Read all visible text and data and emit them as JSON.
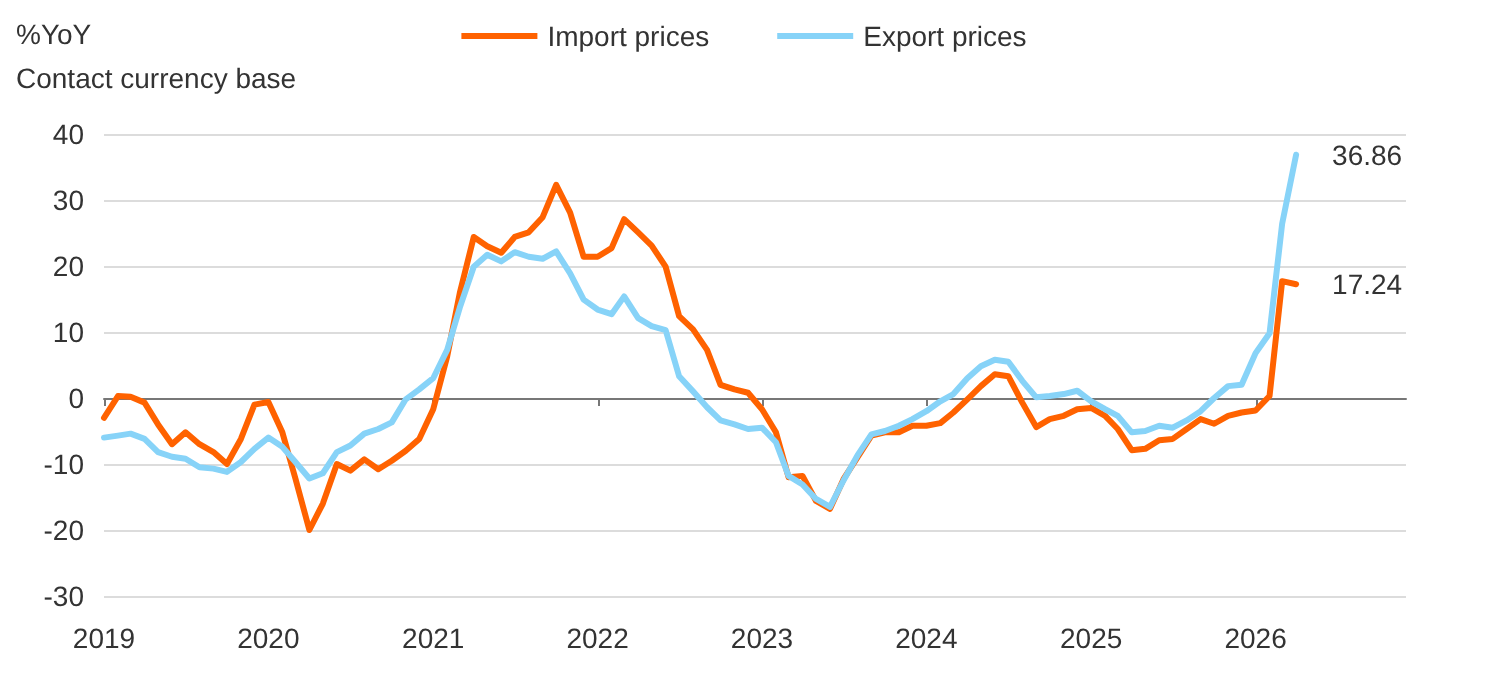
{
  "chart_data": {
    "type": "line",
    "ylabel": "%YoY\nContact currency base",
    "x": [
      "2019-01",
      "2019-02",
      "2019-03",
      "2019-04",
      "2019-05",
      "2019-06",
      "2019-07",
      "2019-08",
      "2019-09",
      "2019-10",
      "2019-11",
      "2019-12",
      "2020-01",
      "2020-02",
      "2020-03",
      "2020-04",
      "2020-05",
      "2020-06",
      "2020-07",
      "2020-08",
      "2020-09",
      "2020-10",
      "2020-11",
      "2020-12",
      "2021-01",
      "2021-02",
      "2021-03",
      "2021-04",
      "2021-05",
      "2021-06",
      "2021-07",
      "2021-08",
      "2021-09",
      "2021-10",
      "2021-11",
      "2021-12",
      "2022-01",
      "2022-02",
      "2022-03",
      "2022-04",
      "2022-05",
      "2022-06",
      "2022-07",
      "2022-08",
      "2022-09",
      "2022-10",
      "2022-11",
      "2022-12",
      "2023-01",
      "2023-02",
      "2023-03",
      "2023-04",
      "2023-05",
      "2023-06",
      "2023-07",
      "2023-08",
      "2023-09",
      "2023-10",
      "2023-11",
      "2023-12",
      "2024-01",
      "2024-02",
      "2024-03",
      "2024-04",
      "2024-05",
      "2024-06",
      "2024-07",
      "2024-08",
      "2024-09",
      "2024-10",
      "2024-11",
      "2024-12",
      "2025-01",
      "2025-02",
      "2025-03",
      "2025-04",
      "2025-05",
      "2025-06",
      "2025-07",
      "2025-08",
      "2025-09",
      "2025-10",
      "2025-11",
      "2025-12",
      "2026-01",
      "2026-02",
      "2026-03",
      "2026-04"
    ],
    "series": [
      {
        "name": "Import prices",
        "color": "#ff6200",
        "values": [
          -3,
          0.3,
          0.2,
          -0.7,
          -4,
          -7,
          -5.2,
          -7,
          -8.2,
          -10,
          -6.2,
          -1,
          -0.6,
          -5.2,
          -12.2,
          -20,
          -16,
          -10,
          -11,
          -9.3,
          -10.8,
          -9.5,
          -8,
          -6.2,
          -1.7,
          6.3,
          15.9,
          24.4,
          23,
          22,
          24.4,
          25.1,
          27.4,
          32.3,
          28.1,
          21.4,
          21.4,
          22.7,
          27.1,
          25.1,
          23.1,
          19.9,
          12.4,
          10.4,
          7.3,
          2,
          1.3,
          0.8,
          -1.7,
          -5.2,
          -12,
          -11.8,
          -15.6,
          -16.8,
          -12.3,
          -9,
          -5.7,
          -5.2,
          -5.2,
          -4.2,
          -4.2,
          -3.8,
          -2.2,
          -0.2,
          1.8,
          3.6,
          3.3,
          -0.7,
          -4.4,
          -3.2,
          -2.7,
          -1.7,
          -1.5,
          -2.7,
          -4.7,
          -7.9,
          -7.7,
          -6.4,
          -6.2,
          -4.7,
          -3.2,
          -3.9,
          -2.7,
          -2.2,
          -1.9,
          0.3,
          17.7,
          17.24
        ]
      },
      {
        "name": "Export prices",
        "color": "#87d3f8",
        "values": [
          -6,
          -5.7,
          -5.4,
          -6.2,
          -8.2,
          -8.9,
          -9.2,
          -10.5,
          -10.7,
          -11.2,
          -9.7,
          -7.7,
          -6,
          -7.4,
          -9.7,
          -12.2,
          -11.4,
          -8.2,
          -7.2,
          -5.4,
          -4.7,
          -3.7,
          -0.2,
          1.3,
          3,
          7.3,
          13.7,
          19.9,
          21.7,
          20.7,
          22.1,
          21.4,
          21.1,
          22.2,
          18.9,
          14.9,
          13.4,
          12.7,
          15.4,
          12.1,
          10.9,
          10.3,
          3.3,
          1,
          -1.4,
          -3.4,
          -4,
          -4.7,
          -4.5,
          -6.7,
          -11.8,
          -13.1,
          -15.3,
          -16.5,
          -12.5,
          -8.7,
          -5.5,
          -5,
          -4.2,
          -3.2,
          -2,
          -0.5,
          0.6,
          3,
          4.8,
          5.8,
          5.5,
          2.6,
          0.1,
          0.3,
          0.6,
          1.1,
          -0.5,
          -1.7,
          -2.7,
          -5.2,
          -5,
          -4.2,
          -4.5,
          -3.4,
          -2,
          0,
          1.8,
          2,
          6.8,
          9.8,
          26.4,
          36.86
        ]
      }
    ],
    "annotations": [
      {
        "text": "36.86",
        "x": "2026-04",
        "y": 36.86
      },
      {
        "text": "17.24",
        "x": "2026-04",
        "y": 17.24
      }
    ],
    "xlim": [
      "2019-01",
      "2026-12"
    ],
    "xticks": [
      "2019",
      "2020",
      "2021",
      "2022",
      "2023",
      "2024",
      "2025",
      "2026"
    ],
    "ylim": [
      -30,
      40
    ],
    "yticks": [
      -30,
      -20,
      -10,
      0,
      10,
      20,
      30,
      40
    ],
    "grid": "y",
    "legend": "top",
    "marker": "none",
    "line_style": "solid"
  }
}
